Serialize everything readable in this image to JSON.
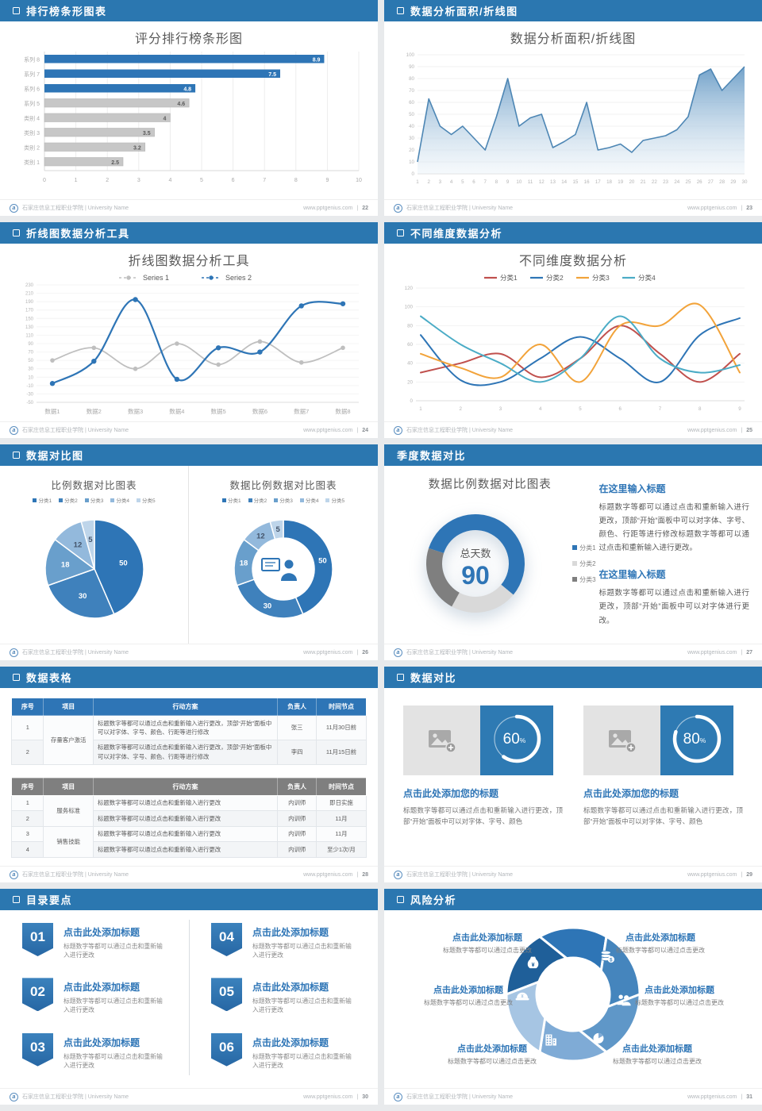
{
  "footer": {
    "org": "石家庄信息工程职业学院 | University Name",
    "site": "www.pptgenius.com"
  },
  "slides": {
    "s1": {
      "header": "排行榜条形图表",
      "page": "22",
      "title": "评分排行榜条形图",
      "chart_data": {
        "type": "bar",
        "orientation": "horizontal",
        "title": "评分排行榜条形图",
        "categories": [
          "系列 8",
          "系列 7",
          "系列 6",
          "系列 5",
          "类别 4",
          "类别 3",
          "类别 2",
          "类别 1"
        ],
        "values": [
          8.9,
          7.5,
          4.8,
          4.6,
          4,
          3.5,
          3.2,
          2.5
        ],
        "bar_colors": [
          "#2e75b6",
          "#2e75b6",
          "#2e75b6",
          "#c7c7c7",
          "#c7c7c7",
          "#c7c7c7",
          "#c7c7c7",
          "#c7c7c7"
        ],
        "xlim": [
          0,
          10
        ],
        "xticks": [
          0,
          1,
          2,
          3,
          4,
          5,
          6,
          7,
          8,
          9,
          10
        ],
        "grid": true
      }
    },
    "s2": {
      "header": "数据分析面积/折线图",
      "page": "23",
      "title": "数据分析面积/折线图",
      "chart_data": {
        "type": "area",
        "title": "数据分析面积/折线图",
        "x": [
          1,
          2,
          3,
          4,
          5,
          6,
          7,
          8,
          9,
          10,
          11,
          12,
          13,
          14,
          15,
          16,
          17,
          18,
          19,
          20,
          21,
          22,
          23,
          24,
          25,
          26,
          27,
          28,
          29,
          30
        ],
        "values": [
          10,
          63,
          40,
          33,
          40,
          30,
          20,
          48,
          80,
          40,
          47,
          50,
          22,
          27,
          33,
          60,
          20,
          22,
          25,
          18,
          28,
          30,
          32,
          37,
          48,
          83,
          88,
          70,
          80,
          90
        ],
        "ylim": [
          0,
          100
        ],
        "ytick_step": 10,
        "line_color": "#4d86b4",
        "fill_top": "#6b9dc7",
        "fill_bottom": "#eaf2f8",
        "grid": true
      }
    },
    "s3": {
      "header": "折线图数据分析工具",
      "page": "24",
      "title": "折线图数据分析工具",
      "chart_data": {
        "type": "line",
        "title": "折线图数据分析工具",
        "smooth": true,
        "markers": true,
        "legend_position": "top",
        "categories": [
          "数据1",
          "数据2",
          "数据3",
          "数据4",
          "数据5",
          "数据6",
          "数据7",
          "数据8"
        ],
        "series": [
          {
            "name": "Series 1",
            "color": "#bfbfbf",
            "values": [
              50,
              80,
              30,
              90,
              40,
              95,
              45,
              80
            ]
          },
          {
            "name": "Series 2",
            "color": "#2e75b6",
            "values": [
              -5,
              48,
              195,
              5,
              80,
              70,
              180,
              185
            ]
          }
        ],
        "ylim": [
          -50,
          230
        ],
        "ytick_step": 20
      }
    },
    "s4": {
      "header": "不同维度数据分析",
      "page": "25",
      "title": "不同维度数据分析",
      "chart_data": {
        "type": "line",
        "title": "不同维度数据分析",
        "smooth": true,
        "markers": false,
        "legend_position": "top",
        "x": [
          1,
          2,
          3,
          4,
          5,
          6,
          7,
          8,
          9
        ],
        "series": [
          {
            "name": "分类1",
            "color": "#c0504d",
            "values": [
              30,
              40,
              50,
              25,
              45,
              80,
              50,
              20,
              50
            ]
          },
          {
            "name": "分类2",
            "color": "#2e75b6",
            "values": [
              70,
              22,
              20,
              45,
              68,
              45,
              20,
              70,
              88
            ]
          },
          {
            "name": "分类3",
            "color": "#f2a33a",
            "values": [
              50,
              35,
              25,
              60,
              20,
              80,
              80,
              102,
              30
            ]
          },
          {
            "name": "分类4",
            "color": "#4bacc6",
            "values": [
              90,
              60,
              40,
              20,
              45,
              90,
              45,
              30,
              38
            ]
          }
        ],
        "ylim": [
          0,
          120
        ],
        "ytick_step": 20
      }
    },
    "s5": {
      "header": "数据对比图",
      "page": "26",
      "charts": [
        {
          "type": "pie",
          "title": "比例数据对比图表",
          "legend": [
            "分类1",
            "分类2",
            "分类3",
            "分类4",
            "分类5"
          ],
          "values": [
            50,
            30,
            18,
            12,
            5
          ],
          "colors": [
            "#2e75b6",
            "#3f81bc",
            "#699fcc",
            "#93b9dc",
            "#bed5ea"
          ]
        },
        {
          "type": "donut",
          "title": "数据比例数据对比图表",
          "legend": [
            "分类1",
            "分类2",
            "分类3",
            "分类4",
            "分类5"
          ],
          "values": [
            50,
            30,
            18,
            12,
            5
          ],
          "colors": [
            "#2e75b6",
            "#3f81bc",
            "#699fcc",
            "#93b9dc",
            "#bed5ea"
          ],
          "center_icon": "presenter-icon"
        }
      ]
    },
    "s6": {
      "header": "季度数据对比",
      "page": "27",
      "title": "数据比例数据对比图表",
      "chart_data": {
        "type": "donut",
        "rotation": 288,
        "segments": [
          {
            "label": "分类1",
            "value": 56,
            "color": "#2e75b6"
          },
          {
            "label": "分类2",
            "value": 22,
            "color": "#d9d9d9"
          },
          {
            "label": "分类3",
            "value": 22,
            "color": "#7f7f7f"
          }
        ],
        "center_label": "总天数",
        "center_value": "90"
      },
      "sections": [
        {
          "heading": "在这里输入标题",
          "body": "标题数字等都可以通过点击和重新输入进行更改，顶部“开始”面板中可以对字体、字号、颜色、行距等进行修改标题数字等都可以通过点击和重新输入进行更改。"
        },
        {
          "heading": "在这里输入标题",
          "body": "标题数字等都可以通过点击和重新输入进行更改，顶部“开始”面板中可以对字体进行更改。"
        }
      ]
    },
    "s7": {
      "header": "数据表格",
      "page": "28",
      "table1": {
        "headers": [
          "序号",
          "项目",
          "行动方案",
          "负责人",
          "时间节点"
        ],
        "header_bg": "#2e75b6",
        "groups": [
          {
            "project": "存量客户激活",
            "rows": [
              {
                "no": "1",
                "action": "标题数字等都可以通过点击和重新输入进行更改，顶部“开始”面板中可以对字体、字号、颜色、行距等进行修改",
                "owner": "张三",
                "time": "11月30日前"
              },
              {
                "no": "2",
                "action": "标题数字等都可以通过点击和重新输入进行更改，顶部“开始”面板中可以对字体、字号、颜色、行距等进行修改",
                "owner": "李四",
                "time": "11月15日前"
              }
            ]
          }
        ]
      },
      "table2": {
        "headers": [
          "序号",
          "项目",
          "行动方案",
          "负责人",
          "时间节点"
        ],
        "header_bg": "#7f7f7f",
        "groups": [
          {
            "project": "服务标准",
            "rows": [
              {
                "no": "1",
                "action": "标题数字等都可以通过点击和重新输入进行更改",
                "owner": "内训师",
                "time": "即日实施"
              },
              {
                "no": "2",
                "action": "标题数字等都可以通过点击和重新输入进行更改",
                "owner": "内训师",
                "time": "11月"
              }
            ]
          },
          {
            "project": "销售技能",
            "rows": [
              {
                "no": "3",
                "action": "标题数字等都可以通过点击和重新输入进行更改",
                "owner": "内训师",
                "time": "11月"
              },
              {
                "no": "4",
                "action": "标题数字等都可以通过点击和重新输入进行更改",
                "owner": "内训师",
                "time": "至少1次/月"
              }
            ]
          }
        ]
      }
    },
    "s8": {
      "header": "数据对比",
      "page": "29",
      "cards": [
        {
          "percent": 60,
          "title": "点击此处添加您的标题",
          "body": "标题数字等都可以通过点击和重新输入进行更改，顶部“开始”面板中可以对字体、字号、颜色"
        },
        {
          "percent": 80,
          "title": "点击此处添加您的标题",
          "body": "标题数字等都可以通过点击和重新输入进行更改，顶部“开始”面板中可以对字体、字号、颜色"
        }
      ]
    },
    "s9": {
      "header": "目录要点",
      "page": "30",
      "items": [
        {
          "num": "01",
          "title": "点击此处添加标题",
          "desc": "标题数字等都可以通过点击和重新输入进行更改"
        },
        {
          "num": "02",
          "title": "点击此处添加标题",
          "desc": "标题数字等都可以通过点击和重新输入进行更改"
        },
        {
          "num": "03",
          "title": "点击此处添加标题",
          "desc": "标题数字等都可以通过点击和重新输入进行更改"
        },
        {
          "num": "04",
          "title": "点击此处添加标题",
          "desc": "标题数字等都可以通过点击和重新输入进行更改"
        },
        {
          "num": "05",
          "title": "点击此处添加标题",
          "desc": "标题数字等都可以通过点击和重新输入进行更改"
        },
        {
          "num": "06",
          "title": "点击此处添加标题",
          "desc": "标题数字等都可以通过点击和重新输入进行更改"
        }
      ]
    },
    "s10": {
      "header": "风险分析",
      "page": "31",
      "wheel_colors": [
        "#1f5f99",
        "#2e75b6",
        "#4585bd",
        "#5f97c8",
        "#7fabd6",
        "#a6c5e3"
      ],
      "icons": [
        "moneybag",
        "coins",
        "people",
        "pie",
        "building",
        "helmet"
      ],
      "items": [
        {
          "title": "点击此处添加标题",
          "desc": "标题数字等都可以通过点击更改"
        },
        {
          "title": "点击此处添加标题",
          "desc": "标题数字等都可以通过点击更改"
        },
        {
          "title": "点击此处添加标题",
          "desc": "标题数字等都可以通过点击更改"
        },
        {
          "title": "点击此处添加标题",
          "desc": "标题数字等都可以通过点击更改"
        },
        {
          "title": "点击此处添加标题",
          "desc": "标题数字等都可以通过点击更改"
        },
        {
          "title": "点击此处添加标题",
          "desc": "标题数字等都可以通过点击更改"
        }
      ]
    }
  }
}
